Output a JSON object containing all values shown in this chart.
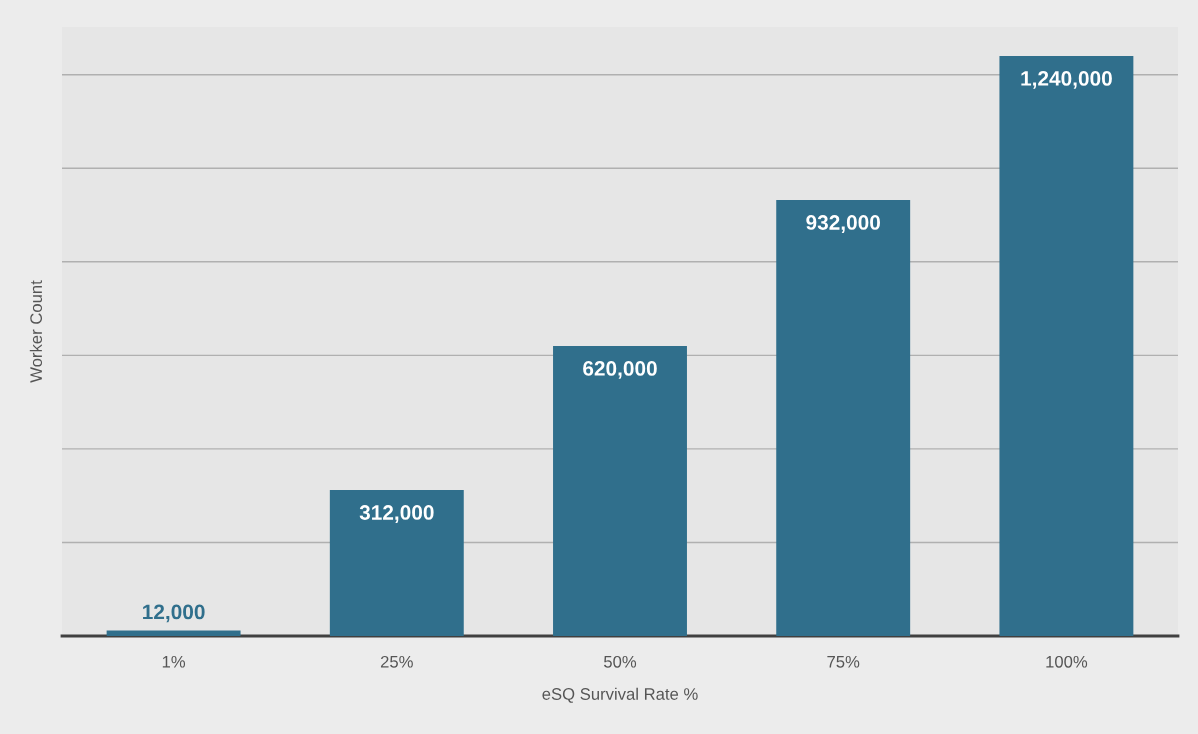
{
  "chart_data": {
    "type": "bar",
    "xlabel": "eSQ Survival Rate %",
    "ylabel": "Worker Count",
    "categories": [
      "1%",
      "25%",
      "50%",
      "75%",
      "100%"
    ],
    "values": [
      12000,
      312000,
      620000,
      932000,
      1240000
    ],
    "value_labels": [
      "12,000",
      "312,000",
      "620,000",
      "932,000",
      "1,240,000"
    ],
    "color": "#306f8c",
    "tick_labels": "x",
    "grid": "y"
  }
}
